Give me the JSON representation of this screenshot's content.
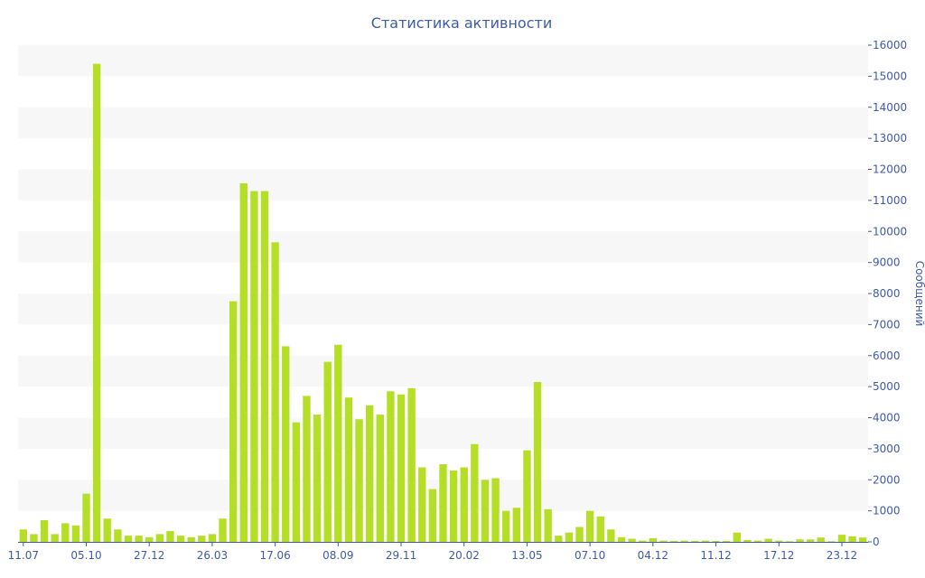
{
  "colors": {
    "bar": "#B5DF26",
    "band": "#F7F7F7",
    "axis_text": "#3E5AA8",
    "axis_line": "#3E5AA8"
  },
  "chart_data": {
    "type": "bar",
    "title": "Статистика активности",
    "ylabel": "Сообщений",
    "xlabel": "",
    "ylim": [
      0,
      16000
    ],
    "y_ticks": [
      0,
      1000,
      2000,
      3000,
      4000,
      5000,
      6000,
      7000,
      8000,
      9000,
      10000,
      11000,
      12000,
      13000,
      14000,
      15000,
      16000
    ],
    "y_axis_side": "right",
    "grid": "alternating horizontal bands",
    "legend": "none",
    "x_tick_labels": [
      {
        "index": 0,
        "label": "11.07"
      },
      {
        "index": 6,
        "label": "05.10"
      },
      {
        "index": 12,
        "label": "27.12"
      },
      {
        "index": 18,
        "label": "26.03"
      },
      {
        "index": 24,
        "label": "17.06"
      },
      {
        "index": 30,
        "label": "08.09"
      },
      {
        "index": 36,
        "label": "29.11"
      },
      {
        "index": 42,
        "label": "20.02"
      },
      {
        "index": 48,
        "label": "13.05"
      },
      {
        "index": 54,
        "label": "07.10"
      },
      {
        "index": 60,
        "label": "04.12"
      },
      {
        "index": 66,
        "label": "11.12"
      },
      {
        "index": 72,
        "label": "17.12"
      },
      {
        "index": 78,
        "label": "23.12"
      }
    ],
    "values": [
      400,
      250,
      700,
      250,
      600,
      530,
      1550,
      15400,
      750,
      400,
      200,
      200,
      150,
      250,
      350,
      200,
      150,
      200,
      250,
      750,
      7750,
      11550,
      11300,
      11300,
      9650,
      6300,
      3850,
      4700,
      4100,
      5800,
      6350,
      4650,
      3950,
      4400,
      4100,
      4850,
      4750,
      4950,
      2400,
      1700,
      2500,
      2300,
      2400,
      3150,
      2000,
      2050,
      1000,
      1100,
      2950,
      5150,
      1050,
      200,
      300,
      480,
      1000,
      820,
      400,
      150,
      100,
      40,
      120,
      40,
      30,
      40,
      30,
      40,
      30,
      30,
      300,
      60,
      40,
      100,
      40,
      20,
      80,
      80,
      140,
      20,
      230,
      180,
      140
    ]
  }
}
